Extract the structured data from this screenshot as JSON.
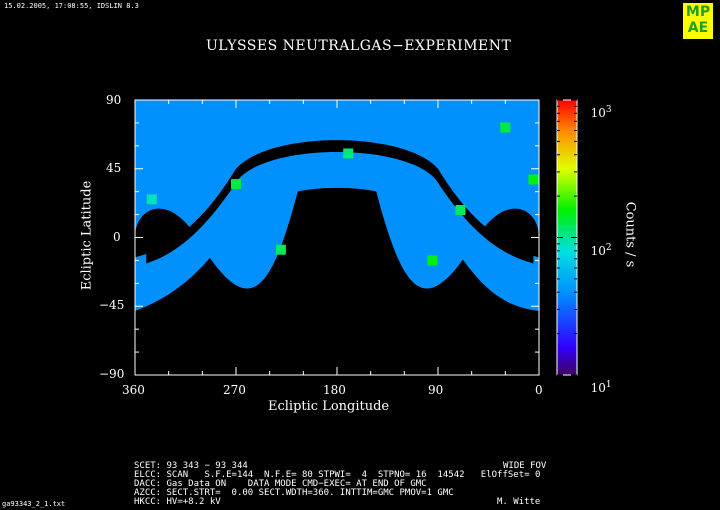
{
  "header": {
    "timestamp": "15.02.2005, 17:08:55, IDSLIN 8.3",
    "logo_text": [
      "MP",
      "AE"
    ]
  },
  "chart_data": {
    "type": "heatmap",
    "title": "ULYSSES NEUTRALGAS−EXPERIMENT",
    "xlabel": "Ecliptic Longitude",
    "ylabel": "Ecliptic Latitude",
    "xlim": [
      360,
      0
    ],
    "ylim": [
      -90,
      90
    ],
    "x_ticks": [
      "360",
      "270",
      "180",
      "90",
      "0"
    ],
    "y_ticks": [
      "90",
      "45",
      "0",
      "−45",
      "−90"
    ],
    "colorbar": {
      "label": "Counts / s",
      "scale": "log",
      "range": [
        10,
        1000
      ],
      "ticks": [
        {
          "base": "10",
          "exp": "3"
        },
        {
          "base": "10",
          "exp": "2"
        },
        {
          "base": "10",
          "exp": "1"
        }
      ]
    },
    "background_value": 40,
    "hotspots": [
      {
        "lon": 230,
        "lat": -8,
        "value": 120
      },
      {
        "lon": 170,
        "lat": 55,
        "value": 110
      },
      {
        "lon": 95,
        "lat": -15,
        "value": 150
      },
      {
        "lon": 70,
        "lat": 18,
        "value": 120
      },
      {
        "lon": 30,
        "lat": 72,
        "value": 130
      },
      {
        "lon": 345,
        "lat": 25,
        "value": 90
      },
      {
        "lon": 270,
        "lat": 35,
        "value": 130
      },
      {
        "lon": 5,
        "lat": 38,
        "value": 150
      }
    ]
  },
  "footer": {
    "scet": "SCET: 93 343 − 93 344",
    "fov": "WIDE FOV",
    "elcc": "ELCC: SCAN   S.F.E=144  N.F.E= 80 STPWI=  4  STPNO= 16  14542   ElOffSet= 0",
    "dacc": "DACC: Gas Data ON    DATA MODE CMD−EXEC= AT END OF GMC",
    "azcc": "AZCC: SECT.STRT=  0.00 SECT.WDTH=360. INTTIM=GMC PMOV=1 GMC",
    "hkcc": "HKCC: HV=+8.2 kV",
    "author": "M. Witte",
    "file": "ga93343_2_1.txt"
  }
}
